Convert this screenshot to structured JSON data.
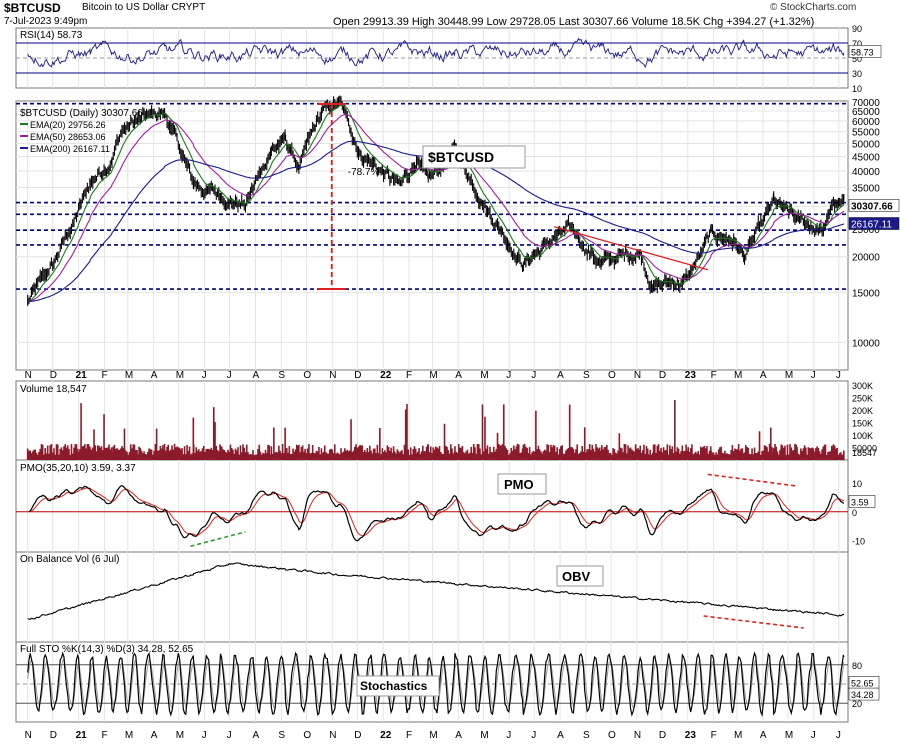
{
  "header": {
    "symbol": "$BTCUSD",
    "name": "Bitcoin to US Dollar CRYPT",
    "date": "7-Jul-2023 9:49pm",
    "ohlc": "Open 29913.39  High 30448.99  Low 29728.05  Last 30307.66  Volume 18.5K  Chg +394.27 (+1.32%)",
    "watermark": "© StockCharts.com"
  },
  "colors": {
    "price": "#000000",
    "ema20": "#1a7a1a",
    "ema50": "#a020a0",
    "ema200": "#1a1a8a",
    "dashed_line": "#000080",
    "annotation_red": "#e02020",
    "annotation_green": "#2a9a2a",
    "volume_bar": "#8b1a2b",
    "pmo_signal": "#e02020",
    "zero_line": "#c00000"
  },
  "chart_data": [
    {
      "type": "line",
      "title": "RSI(14) 58.73",
      "series": [
        {
          "name": "RSI(14)",
          "last": 58.73
        }
      ],
      "yticks": [
        10,
        30,
        50,
        70,
        90
      ],
      "ylim": [
        10,
        90
      ],
      "reference_lines": [
        70,
        30
      ],
      "last_label": "58.73"
    },
    {
      "type": "line",
      "title": "$BTCUSD (Daily) 30307.66",
      "series": [
        {
          "name": "EMA(20) 29756.26",
          "last": 29756.26
        },
        {
          "name": "EMA(50) 28653.06",
          "last": 28653.06
        },
        {
          "name": "EMA(200) 26167.11",
          "last": 26167.11
        }
      ],
      "x": [
        "N",
        "D",
        "21",
        "F",
        "M",
        "A",
        "M",
        "J",
        "J",
        "A",
        "S",
        "O",
        "N",
        "D",
        "22",
        "F",
        "M",
        "A",
        "M",
        "J",
        "J",
        "A",
        "S",
        "O",
        "N",
        "D",
        "23",
        "F",
        "M",
        "A",
        "M",
        "J",
        "J"
      ],
      "price_path": [
        [
          "2020-11-01",
          13800
        ],
        [
          "2020-12-01",
          18500
        ],
        [
          "2021-01-01",
          29000
        ],
        [
          "2021-01-15",
          36000
        ],
        [
          "2021-02-10",
          45000
        ],
        [
          "2021-02-22",
          56000
        ],
        [
          "2021-03-13",
          60000
        ],
        [
          "2021-04-14",
          64000
        ],
        [
          "2021-05-19",
          36000
        ],
        [
          "2021-06-20",
          33000
        ],
        [
          "2021-07-20",
          30500
        ],
        [
          "2021-08-20",
          48000
        ],
        [
          "2021-09-06",
          51000
        ],
        [
          "2021-09-22",
          41000
        ],
        [
          "2021-10-20",
          64000
        ],
        [
          "2021-11-10",
          68800
        ],
        [
          "2021-12-04",
          47000
        ],
        [
          "2022-01-22",
          35000
        ],
        [
          "2022-02-10",
          44000
        ],
        [
          "2022-02-24",
          36000
        ],
        [
          "2022-03-28",
          47000
        ],
        [
          "2022-05-12",
          28000
        ],
        [
          "2022-06-18",
          19000
        ],
        [
          "2022-07-30",
          23800
        ],
        [
          "2022-08-14",
          24500
        ],
        [
          "2022-09-20",
          19000
        ],
        [
          "2022-11-05",
          21000
        ],
        [
          "2022-11-21",
          15800
        ],
        [
          "2022-12-31",
          16600
        ],
        [
          "2023-01-29",
          23800
        ],
        [
          "2023-02-25",
          23000
        ],
        [
          "2023-03-10",
          20000
        ],
        [
          "2023-04-14",
          30500
        ],
        [
          "2023-05-12",
          26500
        ],
        [
          "2023-06-15",
          25000
        ],
        [
          "2023-06-23",
          30600
        ],
        [
          "2023-07-07",
          30307
        ]
      ],
      "yticks": [
        10000,
        15000,
        20000,
        25000,
        30000,
        35000,
        40000,
        45000,
        50000,
        55000,
        60000,
        65000,
        70000
      ],
      "ylim": [
        8000,
        70500
      ],
      "scale": "log",
      "horizontal_levels": [
        69000,
        31000,
        28200,
        24800,
        22000,
        15400
      ],
      "annotations": [
        {
          "text": "$BTCUSD"
        },
        {
          "text": "-78.7%"
        }
      ],
      "last_labels": [
        "30307.66",
        "26167.11"
      ]
    },
    {
      "type": "bar",
      "title": "Volume 18,547",
      "series": [
        {
          "name": "Volume",
          "last": 18547
        }
      ],
      "yticks": [
        "50000",
        "100K",
        "150K",
        "200K",
        "250K",
        "300K"
      ],
      "ylim": [
        0,
        300000
      ],
      "last_label": "18547"
    },
    {
      "type": "line",
      "title": "PMO(35,20,10) 3.59, 3.37",
      "series": [
        {
          "name": "PMO",
          "last": 3.59
        },
        {
          "name": "Signal",
          "last": 3.37
        }
      ],
      "yticks": [
        -10,
        0,
        10
      ],
      "ylim": [
        -14,
        18
      ],
      "annotations": [
        {
          "text": "PMO"
        }
      ],
      "last_label": "3.59"
    },
    {
      "type": "line",
      "title": "On Balance Vol (6 Jul)",
      "series": [
        {
          "name": "OBV"
        }
      ],
      "annotations": [
        {
          "text": "OBV"
        }
      ]
    },
    {
      "type": "line",
      "title": "Full STO %K(14,3) %D(3) 34.28, 52.65",
      "series": [
        {
          "name": "%K",
          "last": 34.28
        },
        {
          "name": "%D",
          "last": 52.65
        }
      ],
      "yticks": [
        20,
        50,
        80
      ],
      "ylim": [
        0,
        100
      ],
      "reference_lines": [
        80,
        20
      ],
      "annotations": [
        {
          "text": "Stochastics"
        }
      ],
      "last_labels": [
        "52.65",
        "34.28"
      ]
    }
  ]
}
